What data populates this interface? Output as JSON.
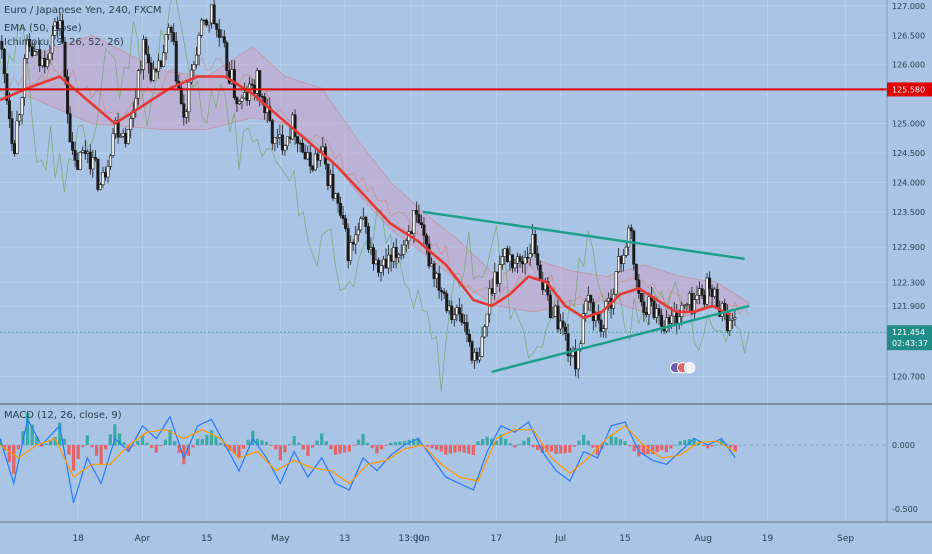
{
  "header": {
    "symbol_title": "Euro / Japanese Yen, 240, FXCM",
    "ema_label": "EMA (50, close)",
    "ichimoku_label": "Ichimoku (9, 26, 52, 26)"
  },
  "macd_header": {
    "label": "MACD (12, 26, close, 9)"
  },
  "colors": {
    "background": "#a9c4e4",
    "ema": "#e53935",
    "resistance": "#e00000",
    "trendline": "#1aa08a",
    "candle": "#1a1a1a",
    "cloud": "#c9a6c8",
    "macd_line": "#2979ff",
    "signal_line": "#ff9800",
    "hist_up": "#26a69a",
    "hist_down": "#ef5350"
  },
  "chart_data": [
    {
      "type": "candlestick",
      "title": "Euro / Japanese Yen, 240, FXCM",
      "x_tick_labels": [
        "18",
        "Apr",
        "15",
        "May",
        "13",
        "13:00",
        "Jun",
        "17",
        "Jul",
        "15",
        "Aug",
        "19",
        "Sep"
      ],
      "x_tick_days": [
        17,
        31,
        45,
        61,
        75,
        89.5,
        92,
        108,
        122,
        136,
        153,
        167,
        184
      ],
      "y_tick_labels": [
        "127.000",
        "126.500",
        "126.000",
        "125.000",
        "124.500",
        "124.000",
        "123.500",
        "122.900",
        "122.300",
        "121.900",
        "120.700"
      ],
      "y_tick_values": [
        127.0,
        126.5,
        126.0,
        125.0,
        124.5,
        124.0,
        123.5,
        122.9,
        122.3,
        121.9,
        120.7
      ],
      "ylim": [
        120.25,
        127.1
      ],
      "x_range_days": [
        0,
        193
      ],
      "resistance_level": {
        "label": "125.580",
        "value": 125.58
      },
      "last_price": {
        "label": "121.454",
        "value": 121.454
      },
      "countdown": "02:43:37",
      "close_points": [
        [
          0,
          126.4
        ],
        [
          3,
          124.6
        ],
        [
          6,
          126.3
        ],
        [
          9,
          126.0
        ],
        [
          13,
          126.8
        ],
        [
          16,
          124.2
        ],
        [
          19,
          124.6
        ],
        [
          22,
          123.9
        ],
        [
          25,
          125.0
        ],
        [
          28,
          124.8
        ],
        [
          31,
          126.3
        ],
        [
          34,
          125.7
        ],
        [
          37,
          126.6
        ],
        [
          40,
          125.0
        ],
        [
          43,
          126.4
        ],
        [
          46,
          126.9
        ],
        [
          49,
          126.1
        ],
        [
          52,
          125.3
        ],
        [
          56,
          125.7
        ],
        [
          60,
          124.6
        ],
        [
          64,
          125.0
        ],
        [
          67,
          124.3
        ],
        [
          70,
          124.5
        ],
        [
          73,
          123.7
        ],
        [
          76,
          122.8
        ],
        [
          79,
          123.3
        ],
        [
          82,
          122.5
        ],
        [
          85,
          122.6
        ],
        [
          88,
          123.0
        ],
        [
          90,
          123.4
        ],
        [
          94,
          122.6
        ],
        [
          98,
          121.9
        ],
        [
          101,
          121.6
        ],
        [
          104,
          120.8
        ],
        [
          107,
          122.3
        ],
        [
          110,
          122.8
        ],
        [
          113,
          122.6
        ],
        [
          116,
          123.0
        ],
        [
          119,
          122.0
        ],
        [
          122,
          121.6
        ],
        [
          125,
          120.9
        ],
        [
          128,
          122.0
        ],
        [
          131,
          121.5
        ],
        [
          134,
          122.4
        ],
        [
          137,
          123.2
        ],
        [
          139,
          122.0
        ],
        [
          142,
          121.9
        ],
        [
          145,
          121.6
        ],
        [
          148,
          121.8
        ],
        [
          151,
          122.0
        ],
        [
          154,
          122.2
        ],
        [
          157,
          121.9
        ],
        [
          159,
          121.5
        ]
      ],
      "ema_points": [
        [
          0,
          125.4
        ],
        [
          6,
          125.6
        ],
        [
          13,
          125.8
        ],
        [
          19,
          125.4
        ],
        [
          25,
          125.0
        ],
        [
          31,
          125.3
        ],
        [
          37,
          125.6
        ],
        [
          43,
          125.8
        ],
        [
          49,
          125.8
        ],
        [
          55,
          125.5
        ],
        [
          61,
          125.1
        ],
        [
          67,
          124.7
        ],
        [
          73,
          124.3
        ],
        [
          79,
          123.8
        ],
        [
          85,
          123.3
        ],
        [
          91,
          123.0
        ],
        [
          97,
          122.6
        ],
        [
          103,
          122.0
        ],
        [
          107,
          121.9
        ],
        [
          111,
          122.1
        ],
        [
          115,
          122.4
        ],
        [
          119,
          122.3
        ],
        [
          123,
          121.9
        ],
        [
          127,
          121.7
        ],
        [
          131,
          121.8
        ],
        [
          135,
          122.1
        ],
        [
          139,
          122.2
        ],
        [
          143,
          122.0
        ],
        [
          147,
          121.8
        ],
        [
          151,
          121.8
        ],
        [
          155,
          121.9
        ],
        [
          159,
          121.75
        ]
      ],
      "upper_trendline": [
        [
          92,
          123.5
        ],
        [
          162,
          122.7
        ]
      ],
      "lower_trendline": [
        [
          107,
          120.78
        ],
        [
          163,
          121.9
        ]
      ],
      "cloud_top": [
        [
          5,
          126.1
        ],
        [
          20,
          126.5
        ],
        [
          35,
          125.9
        ],
        [
          45,
          125.8
        ],
        [
          55,
          126.3
        ],
        [
          62,
          125.8
        ],
        [
          70,
          125.6
        ],
        [
          78,
          124.7
        ],
        [
          85,
          124.0
        ],
        [
          92,
          123.5
        ],
        [
          100,
          123.0
        ],
        [
          108,
          122.4
        ],
        [
          116,
          122.7
        ],
        [
          124,
          122.5
        ],
        [
          132,
          122.4
        ],
        [
          140,
          122.6
        ],
        [
          148,
          122.4
        ],
        [
          156,
          122.3
        ],
        [
          163,
          121.95
        ]
      ],
      "cloud_bottom": [
        [
          5,
          125.5
        ],
        [
          20,
          125.0
        ],
        [
          35,
          124.9
        ],
        [
          45,
          124.9
        ],
        [
          55,
          125.1
        ],
        [
          62,
          125.0
        ],
        [
          70,
          124.6
        ],
        [
          78,
          123.8
        ],
        [
          85,
          123.2
        ],
        [
          92,
          122.8
        ],
        [
          100,
          122.3
        ],
        [
          108,
          121.9
        ],
        [
          116,
          121.8
        ],
        [
          124,
          121.9
        ],
        [
          132,
          122.0
        ],
        [
          140,
          121.8
        ],
        [
          148,
          121.7
        ],
        [
          156,
          121.9
        ],
        [
          163,
          121.9
        ]
      ]
    },
    {
      "type": "macd",
      "title": "MACD (12, 26, close, 9)",
      "y_tick_labels": [
        "0.000",
        "-0.500"
      ],
      "y_tick_values": [
        0.0,
        -0.5
      ],
      "ylim": [
        -0.6,
        0.32
      ],
      "macd_line": [
        [
          0,
          0.05
        ],
        [
          3,
          -0.3
        ],
        [
          6,
          0.2
        ],
        [
          9,
          0.0
        ],
        [
          13,
          0.15
        ],
        [
          16,
          -0.45
        ],
        [
          19,
          -0.1
        ],
        [
          22,
          -0.3
        ],
        [
          25,
          0.05
        ],
        [
          28,
          -0.05
        ],
        [
          31,
          0.15
        ],
        [
          34,
          0.05
        ],
        [
          37,
          0.22
        ],
        [
          40,
          -0.1
        ],
        [
          43,
          0.15
        ],
        [
          46,
          0.2
        ],
        [
          49,
          0.0
        ],
        [
          52,
          -0.2
        ],
        [
          55,
          0.05
        ],
        [
          58,
          -0.1
        ],
        [
          61,
          -0.3
        ],
        [
          64,
          -0.05
        ],
        [
          67,
          -0.25
        ],
        [
          70,
          -0.1
        ],
        [
          73,
          -0.3
        ],
        [
          76,
          -0.35
        ],
        [
          79,
          -0.1
        ],
        [
          82,
          -0.2
        ],
        [
          85,
          -0.08
        ],
        [
          88,
          0.0
        ],
        [
          91,
          0.05
        ],
        [
          94,
          -0.1
        ],
        [
          97,
          -0.25
        ],
        [
          100,
          -0.3
        ],
        [
          103,
          -0.35
        ],
        [
          106,
          -0.05
        ],
        [
          109,
          0.15
        ],
        [
          112,
          0.1
        ],
        [
          115,
          0.18
        ],
        [
          118,
          -0.05
        ],
        [
          121,
          -0.2
        ],
        [
          124,
          -0.28
        ],
        [
          127,
          -0.05
        ],
        [
          130,
          -0.1
        ],
        [
          133,
          0.15
        ],
        [
          136,
          0.18
        ],
        [
          139,
          -0.05
        ],
        [
          142,
          -0.12
        ],
        [
          145,
          -0.15
        ],
        [
          148,
          -0.05
        ],
        [
          151,
          0.05
        ],
        [
          154,
          0.0
        ],
        [
          157,
          0.05
        ],
        [
          160,
          -0.1
        ]
      ],
      "signal_line": [
        [
          0,
          0.0
        ],
        [
          4,
          -0.1
        ],
        [
          8,
          0.0
        ],
        [
          12,
          0.05
        ],
        [
          16,
          -0.25
        ],
        [
          20,
          -0.15
        ],
        [
          24,
          -0.15
        ],
        [
          28,
          0.0
        ],
        [
          32,
          0.1
        ],
        [
          36,
          0.12
        ],
        [
          40,
          0.05
        ],
        [
          44,
          0.12
        ],
        [
          48,
          0.05
        ],
        [
          52,
          -0.1
        ],
        [
          56,
          -0.05
        ],
        [
          60,
          -0.2
        ],
        [
          64,
          -0.12
        ],
        [
          68,
          -0.18
        ],
        [
          72,
          -0.2
        ],
        [
          76,
          -0.3
        ],
        [
          80,
          -0.15
        ],
        [
          84,
          -0.12
        ],
        [
          88,
          -0.03
        ],
        [
          92,
          0.0
        ],
        [
          96,
          -0.15
        ],
        [
          100,
          -0.25
        ],
        [
          104,
          -0.28
        ],
        [
          108,
          0.05
        ],
        [
          112,
          0.12
        ],
        [
          116,
          0.12
        ],
        [
          120,
          -0.1
        ],
        [
          124,
          -0.22
        ],
        [
          128,
          -0.1
        ],
        [
          132,
          0.05
        ],
        [
          136,
          0.15
        ],
        [
          140,
          0.0
        ],
        [
          144,
          -0.1
        ],
        [
          148,
          -0.08
        ],
        [
          152,
          0.02
        ],
        [
          156,
          0.03
        ],
        [
          160,
          -0.05
        ]
      ]
    }
  ]
}
